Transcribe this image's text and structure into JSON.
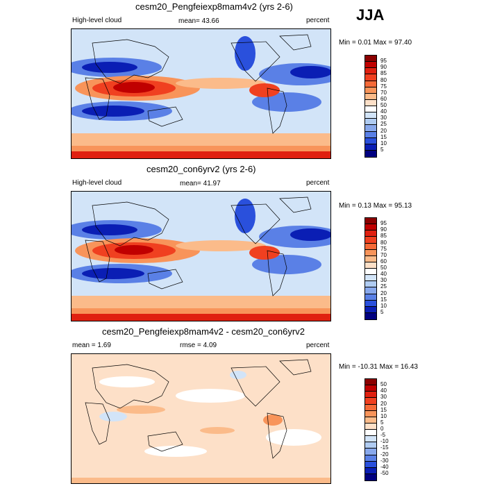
{
  "season": "JJA",
  "panels": [
    {
      "title": "cesm20_Pengfeiexp8mam4v2 (yrs 2-6)",
      "left_label": "High-level cloud",
      "center_label": "mean=  43.66",
      "units": "percent",
      "minmax": "Min =   0.01 Max =  97.40"
    },
    {
      "title": "cesm20_con6yrv2 (yrs 2-6)",
      "left_label": "High-level cloud",
      "center_label": "mean=  41.97",
      "units": "percent",
      "minmax": "Min =   0.13 Max =  95.13"
    },
    {
      "title": "cesm20_Pengfeiexp8mam4v2 - cesm20_con6yrv2",
      "left_label": "mean =   1.69",
      "center_label": "rmse =   4.09",
      "units": "percent",
      "minmax": "Min = -10.31 Max =  16.43"
    }
  ],
  "colorbar_abs": {
    "labels": [
      "95",
      "90",
      "85",
      "80",
      "75",
      "70",
      "60",
      "50",
      "40",
      "30",
      "25",
      "20",
      "15",
      "10",
      "5"
    ],
    "colors": [
      "#8b0000",
      "#c00000",
      "#e02010",
      "#f04020",
      "#f56a38",
      "#f8945a",
      "#fbbb8a",
      "#fde0c8",
      "#ffffff",
      "#d2e4f8",
      "#b0ccf2",
      "#88a8ec",
      "#5a80e6",
      "#2a50dc",
      "#0a1eb4",
      "#000080"
    ]
  },
  "colorbar_diff": {
    "labels": [
      "50",
      "40",
      "30",
      "20",
      "15",
      "10",
      "5",
      "0",
      "-5",
      "-10",
      "-15",
      "-20",
      "-30",
      "-40",
      "-50"
    ],
    "colors": [
      "#8b0000",
      "#c00000",
      "#e02010",
      "#f04020",
      "#f56a38",
      "#f8945a",
      "#fbbb8a",
      "#fde0c8",
      "#ffffff",
      "#d2e4f8",
      "#b0ccf2",
      "#88a8ec",
      "#5a80e6",
      "#2a50dc",
      "#0a1eb4",
      "#000080"
    ]
  }
}
